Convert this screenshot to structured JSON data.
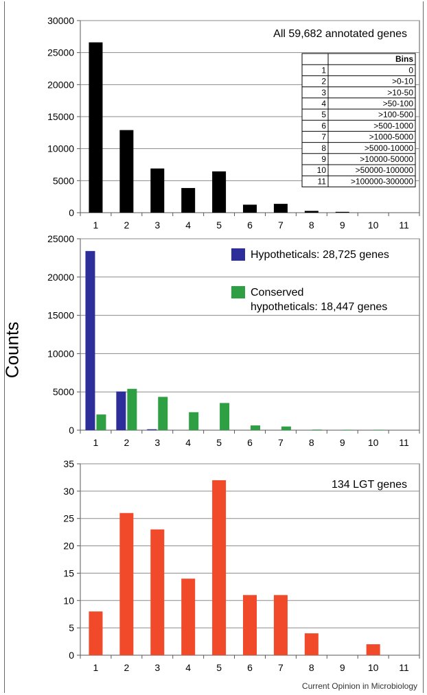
{
  "y_axis_label": "Counts",
  "credit": "Current Opinion in Microbiology",
  "bins_table": {
    "header": "Bins",
    "rows": [
      {
        "n": "1",
        "range": "0"
      },
      {
        "n": "2",
        "range": ">0-10"
      },
      {
        "n": "3",
        "range": ">10-50"
      },
      {
        "n": "4",
        "range": ">50-100"
      },
      {
        "n": "5",
        "range": ">100-500"
      },
      {
        "n": "6",
        "range": ">500-1000"
      },
      {
        "n": "7",
        "range": ">1000-5000"
      },
      {
        "n": "8",
        "range": ">5000-10000"
      },
      {
        "n": "9",
        "range": ">10000-50000"
      },
      {
        "n": "10",
        "range": ">50000-100000"
      },
      {
        "n": "11",
        "range": ">100000-300000"
      }
    ]
  },
  "chart_data": [
    {
      "type": "bar",
      "annotation": "All 59,682 annotated  genes",
      "categories": [
        "1",
        "2",
        "3",
        "4",
        "5",
        "6",
        "7",
        "8",
        "9",
        "10",
        "11"
      ],
      "series": [
        {
          "color": "#000000",
          "values": [
            26600,
            12900,
            6900,
            3850,
            6450,
            1250,
            1380,
            280,
            130,
            0,
            0
          ]
        }
      ],
      "ylim": [
        0,
        30000
      ],
      "yticks": [
        0,
        5000,
        10000,
        15000,
        20000,
        25000,
        30000
      ],
      "grid": true
    },
    {
      "type": "bar",
      "categories": [
        "1",
        "2",
        "3",
        "4",
        "5",
        "6",
        "7",
        "8",
        "9",
        "10",
        "11"
      ],
      "series": [
        {
          "name": "Hypotheticals: 28,725 genes",
          "color": "#2e2e9a",
          "values": [
            23400,
            5050,
            120,
            0,
            0,
            0,
            0,
            0,
            0,
            0,
            0
          ]
        },
        {
          "name": "Conserved hypotheticals: 18,447 genes",
          "legend_lines": [
            "Conserved",
            "hypotheticals: 18,447 genes"
          ],
          "color": "#2ea043",
          "values": [
            2050,
            5400,
            4350,
            2350,
            3550,
            620,
            480,
            80,
            60,
            60,
            0
          ]
        }
      ],
      "ylim": [
        0,
        25000
      ],
      "yticks": [
        0,
        5000,
        10000,
        15000,
        20000,
        25000
      ],
      "legend": "top-right",
      "grid": true
    },
    {
      "type": "bar",
      "annotation": "134 LGT genes",
      "categories": [
        "1",
        "2",
        "3",
        "4",
        "5",
        "6",
        "7",
        "8",
        "9",
        "10",
        "11"
      ],
      "series": [
        {
          "color": "#f04a2a",
          "values": [
            8,
            26,
            23,
            14,
            32,
            11,
            11,
            4,
            0,
            2,
            0
          ]
        }
      ],
      "ylim": [
        0,
        35
      ],
      "yticks": [
        0,
        5,
        10,
        15,
        20,
        25,
        30,
        35
      ],
      "grid": true
    }
  ]
}
